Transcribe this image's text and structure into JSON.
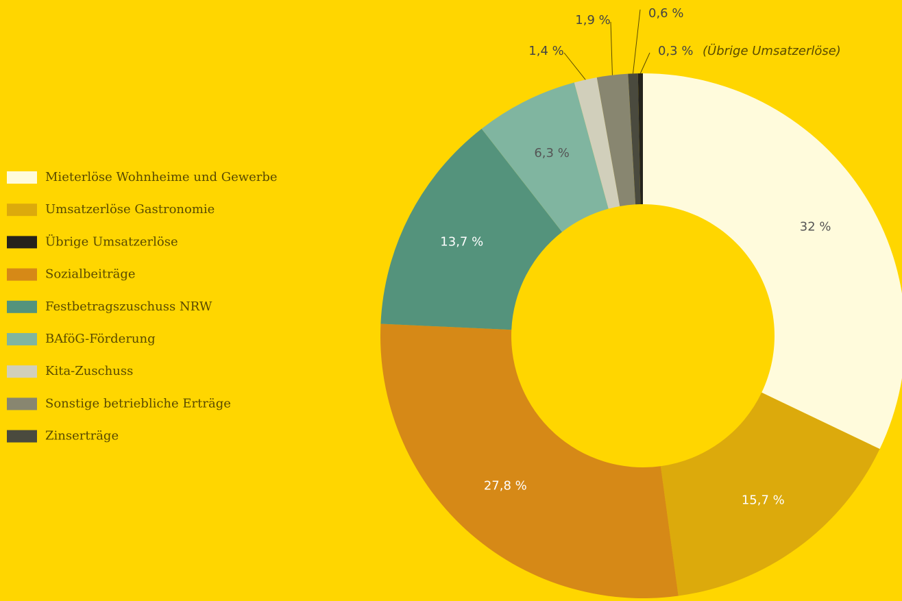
{
  "chart_data": {
    "type": "donut",
    "categories": [
      "Mieterlöse Wohnheime und Gewerbe",
      "Umsatzerlöse Gastronomie",
      "Übrige Umsatzerlöse",
      "Sozialbeiträge",
      "Festbetragszuschuss NRW",
      "BAföG-Förderung",
      "Kita-Zuschuss",
      "Sonstige betriebliche Erträge",
      "Zinserträge"
    ],
    "values": [
      32,
      15.7,
      0.3,
      27.8,
      13.7,
      6.3,
      1.4,
      1.9,
      0.6
    ],
    "value_labels": [
      "32 %",
      "15,7 %",
      "0,3 %",
      "27,8 %",
      "13,7 %",
      "6,3 %",
      "1,4 %",
      "1,9 %",
      "0,6 %"
    ],
    "colors": [
      "#fffbdc",
      "#dcaa0c",
      "#25231c",
      "#d68917",
      "#54937c",
      "#80b5a0",
      "#d1cfbb",
      "#888670",
      "#4a4a3e"
    ],
    "label_colors": [
      "#555555",
      "#ffffff",
      "#444444",
      "#ffffff",
      "#ffffff",
      "#555555",
      "#444444",
      "#444444",
      "#444444"
    ],
    "slice_order": [
      0,
      1,
      3,
      4,
      5,
      6,
      7,
      8,
      2
    ],
    "annotations": [
      {
        "text": "(Übrige Umsatzerlöse)",
        "slice": 2
      }
    ],
    "legend": true
  }
}
